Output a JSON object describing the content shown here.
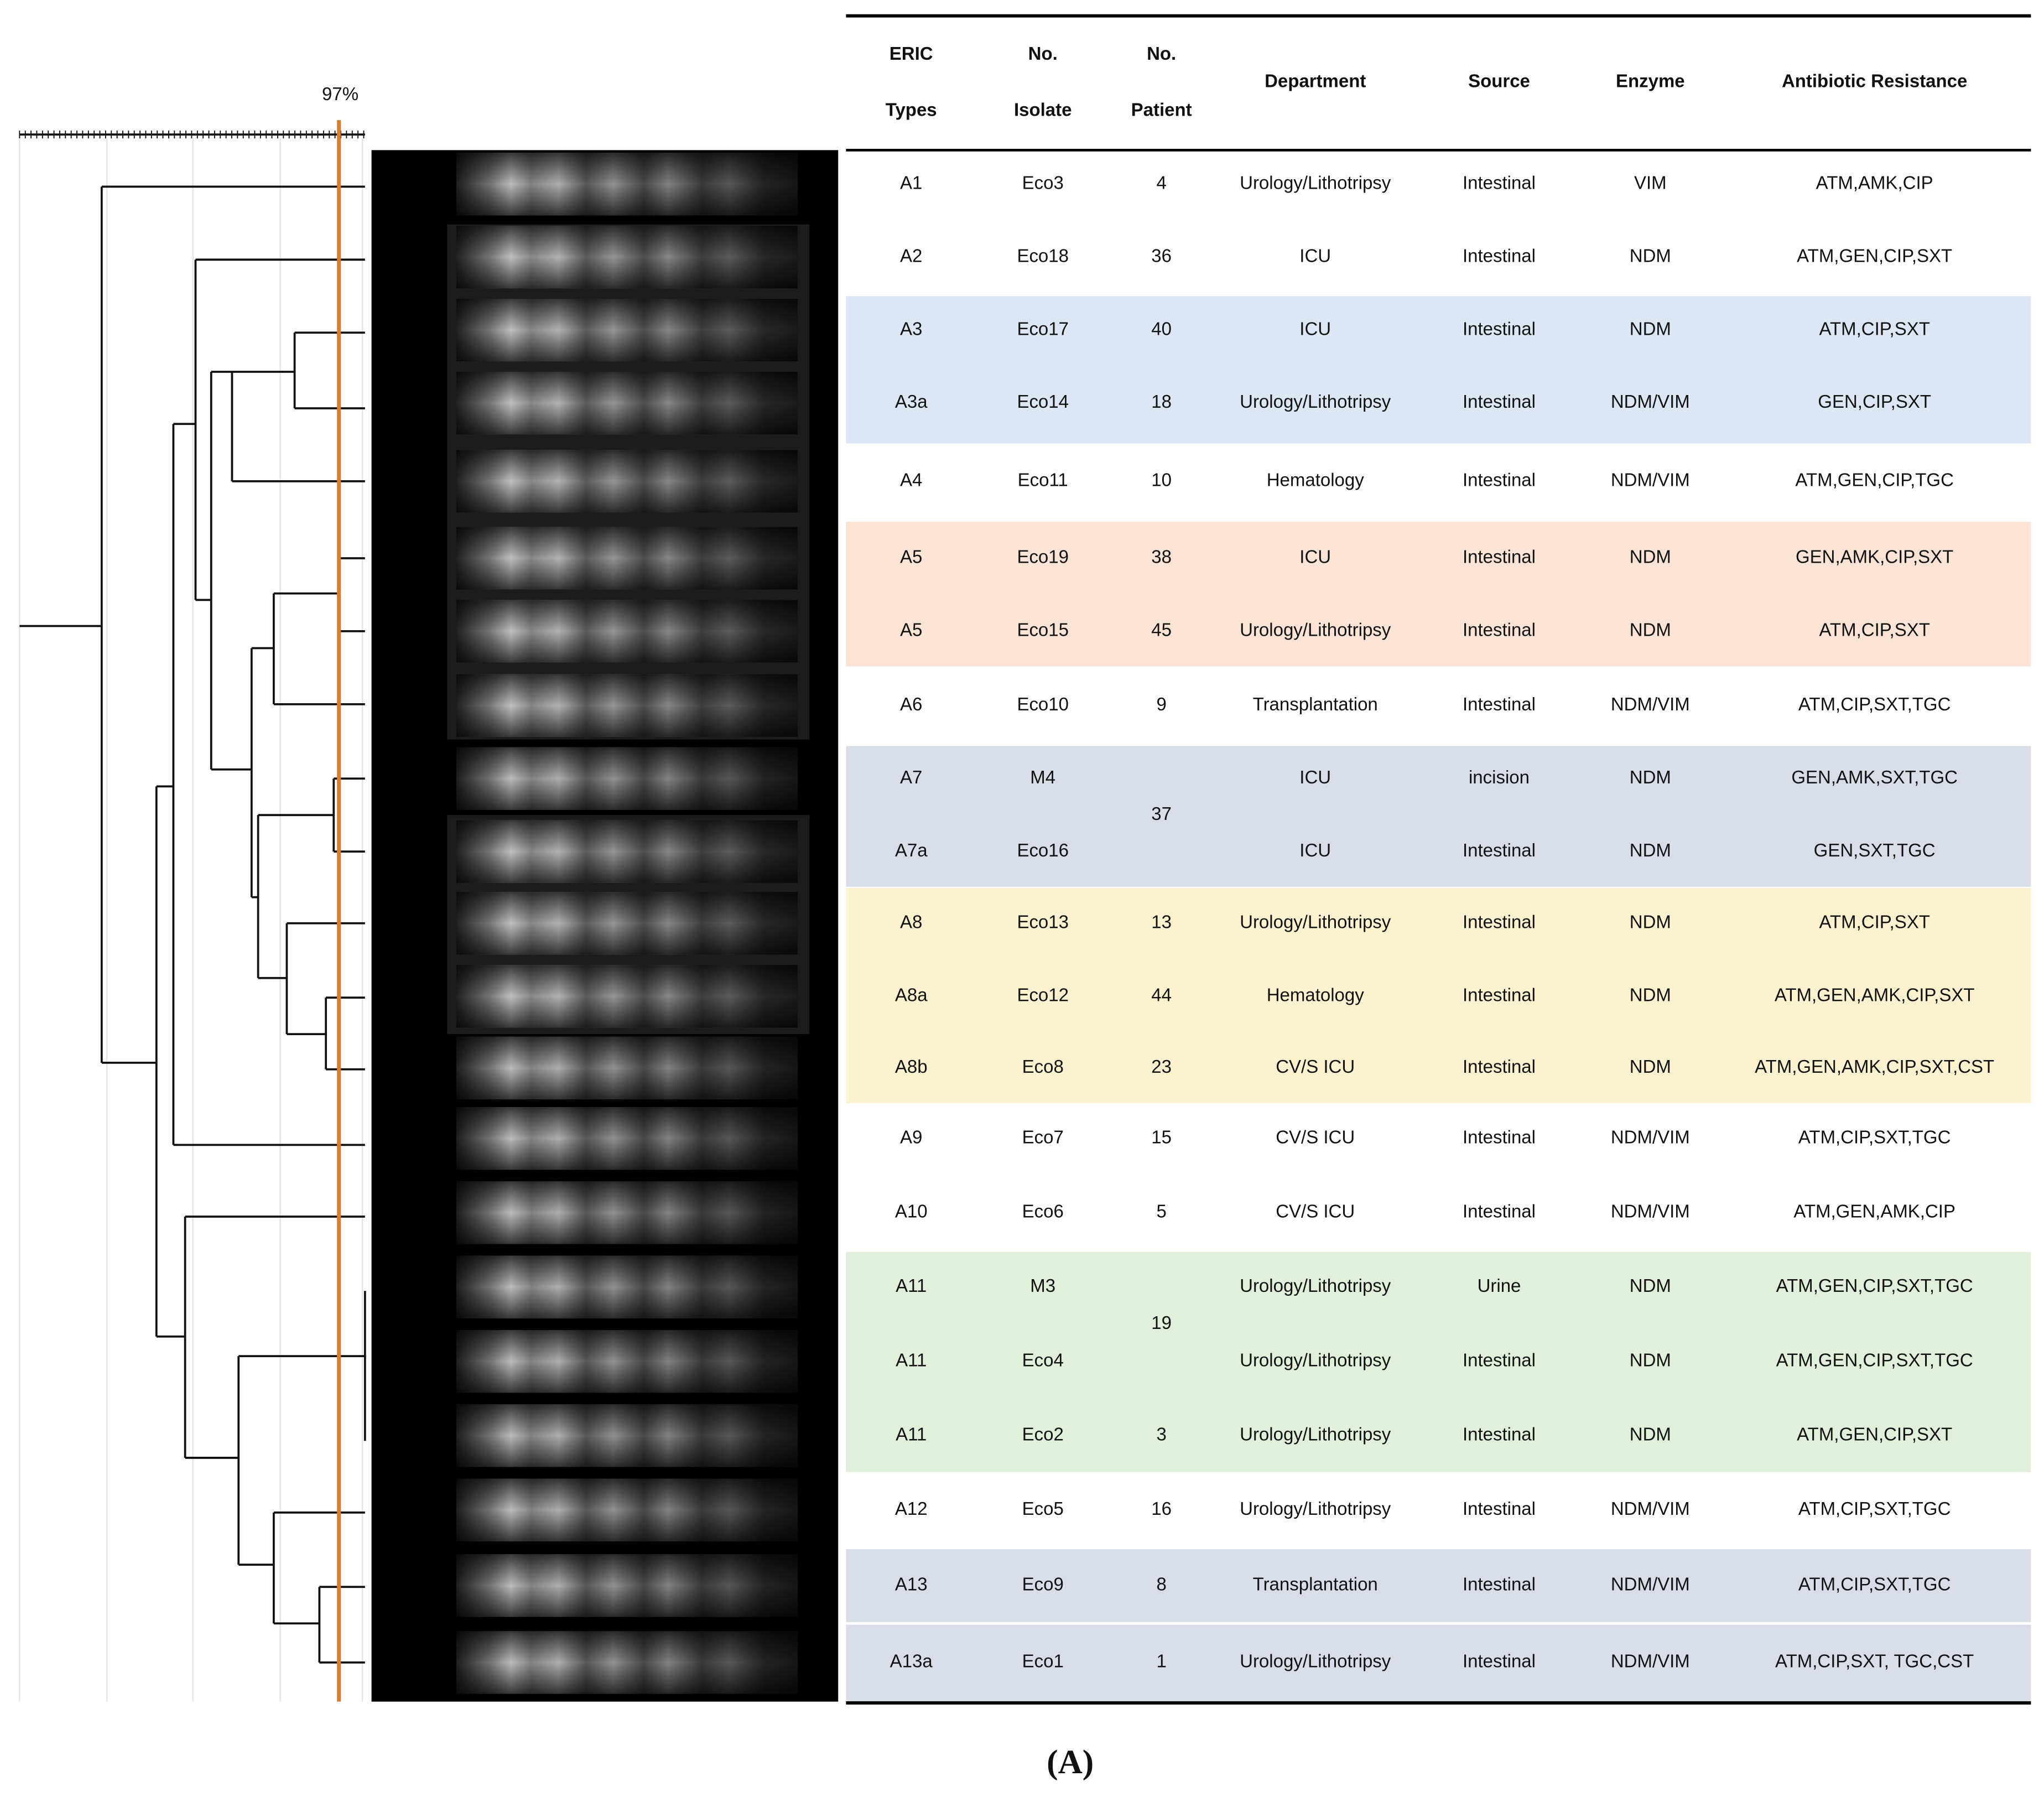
{
  "figure": {
    "threshold_label": "97%",
    "panel_label": "(A)"
  },
  "table": {
    "headers": [
      [
        "ERIC",
        "Types"
      ],
      [
        "No.",
        "Isolate"
      ],
      [
        "No.",
        "Patient"
      ],
      [
        "Department"
      ],
      [
        "Source"
      ],
      [
        "Enzyme"
      ],
      [
        "Antibiotic Resistance"
      ]
    ],
    "rows": [
      [
        "A1",
        "Eco3",
        "4",
        "Urology/Lithotripsy",
        "Intestinal",
        "VIM",
        "ATM,AMK,CIP"
      ],
      [
        "A2",
        "Eco18",
        "36",
        "ICU",
        "Intestinal",
        "NDM",
        "ATM,GEN,CIP,SXT"
      ],
      [
        "A3",
        "Eco17",
        "40",
        "ICU",
        "Intestinal",
        "NDM",
        "ATM,CIP,SXT"
      ],
      [
        "A3a",
        "Eco14",
        "18",
        "Urology/Lithotripsy",
        "Intestinal",
        "NDM/VIM",
        "GEN,CIP,SXT"
      ],
      [
        "A4",
        "Eco11",
        "10",
        "Hematology",
        "Intestinal",
        "NDM/VIM",
        "ATM,GEN,CIP,TGC"
      ],
      [
        "A5",
        "Eco19",
        "38",
        "ICU",
        "Intestinal",
        "NDM",
        "GEN,AMK,CIP,SXT"
      ],
      [
        "A5",
        "Eco15",
        "45",
        "Urology/Lithotripsy",
        "Intestinal",
        "NDM",
        "ATM,CIP,SXT"
      ],
      [
        "A6",
        "Eco10",
        "9",
        "Transplantation",
        "Intestinal",
        "NDM/VIM",
        "ATM,CIP,SXT,TGC"
      ],
      [
        "A7",
        "M4",
        "37",
        "ICU",
        "incision",
        "NDM",
        "GEN,AMK,SXT,TGC"
      ],
      [
        "A7a",
        "Eco16",
        null,
        "ICU",
        "Intestinal",
        "NDM",
        "GEN,SXT,TGC"
      ],
      [
        "A8",
        "Eco13",
        "13",
        "Urology/Lithotripsy",
        "Intestinal",
        "NDM",
        "ATM,CIP,SXT"
      ],
      [
        "A8a",
        "Eco12",
        "44",
        "Hematology",
        "Intestinal",
        "NDM",
        "ATM,GEN,AMK,CIP,SXT"
      ],
      [
        "A8b",
        "Eco8",
        "23",
        "CV/S ICU",
        "Intestinal",
        "NDM",
        "ATM,GEN,AMK,CIP,SXT,CST"
      ],
      [
        "A9",
        "Eco7",
        "15",
        "CV/S ICU",
        "Intestinal",
        "NDM/VIM",
        "ATM,CIP,SXT,TGC"
      ],
      [
        "A10",
        "Eco6",
        "5",
        "CV/S ICU",
        "Intestinal",
        "NDM/VIM",
        "ATM,GEN,AMK,CIP"
      ],
      [
        "A11",
        "M3",
        "19",
        "Urology/Lithotripsy",
        "Urine",
        "NDM",
        "ATM,GEN,CIP,SXT,TGC"
      ],
      [
        "A11",
        "Eco4",
        null,
        "Urology/Lithotripsy",
        "Intestinal",
        "NDM",
        "ATM,GEN,CIP,SXT,TGC"
      ],
      [
        "A11",
        "Eco2",
        "3",
        "Urology/Lithotripsy",
        "Intestinal",
        "NDM",
        "ATM,GEN,CIP,SXT"
      ],
      [
        "A12",
        "Eco5",
        "16",
        "Urology/Lithotripsy",
        "Intestinal",
        "NDM/VIM",
        "ATM,CIP,SXT,TGC"
      ],
      [
        "A13",
        "Eco9",
        "8",
        "Transplantation",
        "Intestinal",
        "NDM/VIM",
        "ATM,CIP,SXT,TGC"
      ],
      [
        "A13a",
        "Eco1",
        "1",
        "Urology/Lithotripsy",
        "Intestinal",
        "NDM/VIM",
        "ATM,CIP,SXT, TGC,CST"
      ]
    ]
  }
}
